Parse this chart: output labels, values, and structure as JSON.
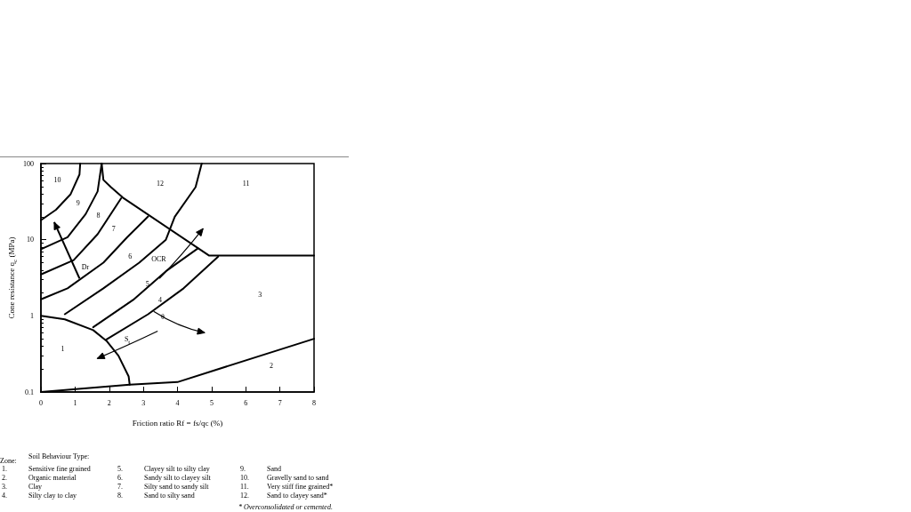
{
  "chart_data": {
    "type": "line",
    "xlabel": "Friction ratio Rf = fs/qc (%)",
    "ylabel": "Cone resistance q$_{c}$ (MPa)",
    "log": "y",
    "xlim": [
      0,
      8
    ],
    "ylim": [
      0.1,
      100
    ],
    "xticks": [
      0,
      1,
      2,
      3,
      4,
      5,
      6,
      7,
      8
    ],
    "yticks": [
      0.1,
      1,
      10,
      100
    ],
    "grid": false,
    "marker": "none",
    "line_style": "solid",
    "series": [
      {
        "color": "#000000",
        "x": [
          0,
          0.44,
          0.87,
          1.13,
          1.15
        ],
        "values": [
          18,
          24.7,
          39.6,
          72,
          100
        ]
      },
      {
        "color": "#000000",
        "x": [
          0,
          0.78,
          1.31,
          1.66,
          1.78
        ],
        "values": [
          7.5,
          10.8,
          21.7,
          43,
          100
        ]
      },
      {
        "color": "#000000",
        "x": [
          1.78,
          1.83,
          2.05,
          2.4,
          4.92,
          8
        ],
        "values": [
          100,
          61,
          49,
          35.7,
          6.2,
          6.2
        ]
      },
      {
        "color": "#000000",
        "x": [
          0,
          0.96,
          1.66,
          2.35
        ],
        "values": [
          3.5,
          5.4,
          11.8,
          35
        ]
      },
      {
        "color": "#000000",
        "x": [
          0,
          0.78,
          1.83,
          2.53,
          3.14
        ],
        "values": [
          1.65,
          2.3,
          5,
          10.8,
          20.2
        ]
      },
      {
        "color": "#000000",
        "x": [
          0.7,
          1.83,
          2.88,
          3.66,
          3.92,
          4.53,
          4.71
        ],
        "values": [
          1.05,
          2.3,
          5,
          10,
          20,
          49,
          100
        ]
      },
      {
        "color": "#000000",
        "x": [
          1.53,
          2.7,
          3.66,
          4.6
        ],
        "values": [
          0.71,
          1.62,
          3.85,
          7.7
        ]
      },
      {
        "color": "#000000",
        "x": [
          1.92,
          3.14,
          4.18,
          5.19
        ],
        "values": [
          0.49,
          1.05,
          2.3,
          6
        ]
      },
      {
        "color": "#000000",
        "x": [
          0,
          0.7,
          1.53,
          1.92,
          2.27,
          2.57,
          2.6
        ],
        "values": [
          1.0,
          0.9,
          0.65,
          0.47,
          0.3,
          0.16,
          0.125
        ]
      },
      {
        "color": "#000000",
        "x": [
          0,
          2.6,
          4,
          8
        ],
        "values": [
          0.1,
          0.125,
          0.135,
          0.5
        ]
      }
    ],
    "annotations": [
      "10",
      "9",
      "8",
      "7",
      "6",
      "5",
      "4",
      "3",
      "12",
      "11",
      "2",
      "1",
      "Dr",
      "OCR",
      "θ",
      "S$_{t}$",
      "Zone:",
      "Soil Behaviour Type:",
      "1. Sensitive fine grained",
      "2. Organic material",
      "3. Clay",
      "4. Silty clay to clay",
      "5. Clayey silt to silty clay",
      "6. Sandy silt to clayey silt",
      "7. Silty sand to sandy silt",
      "8. Sand to silty sand",
      "9. Sand",
      "10. Gravelly sand to sand",
      "11. Very stiff fine grained*",
      "12. Sand to clayey sand*",
      "* Overconsolidated or cemented."
    ]
  }
}
